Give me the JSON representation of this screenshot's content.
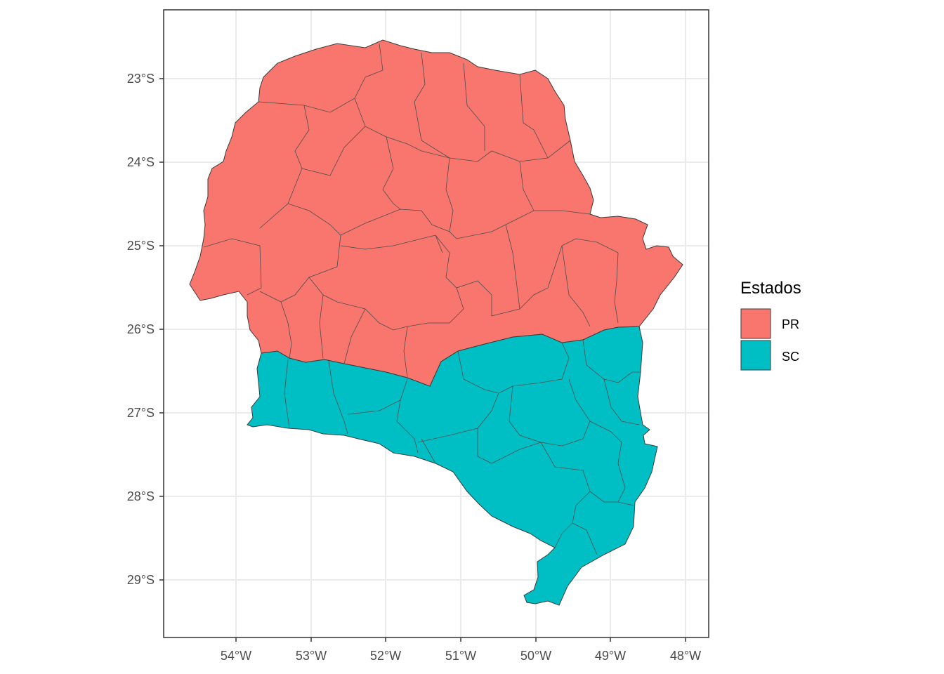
{
  "legend": {
    "title": "Estados",
    "items": [
      {
        "label": "PR",
        "color": "#F8766D"
      },
      {
        "label": "SC",
        "color": "#00BFC4"
      }
    ]
  },
  "axes": {
    "x_ticks": [
      "54°W",
      "53°W",
      "52°W",
      "51°W",
      "50°W",
      "49°W",
      "48°W"
    ],
    "y_ticks": [
      "23°S",
      "24°S",
      "25°S",
      "26°S",
      "27°S",
      "28°S",
      "29°S"
    ]
  },
  "chart_data": {
    "type": "map",
    "x_range_lon": [
      -54.0,
      -48.0
    ],
    "y_range_lat": [
      -23.0,
      -29.0
    ],
    "grid": true,
    "legend_position": "right",
    "regions": [
      {
        "name": "PR",
        "color": "#F8766D"
      },
      {
        "name": "SC",
        "color": "#00BFC4"
      }
    ]
  }
}
